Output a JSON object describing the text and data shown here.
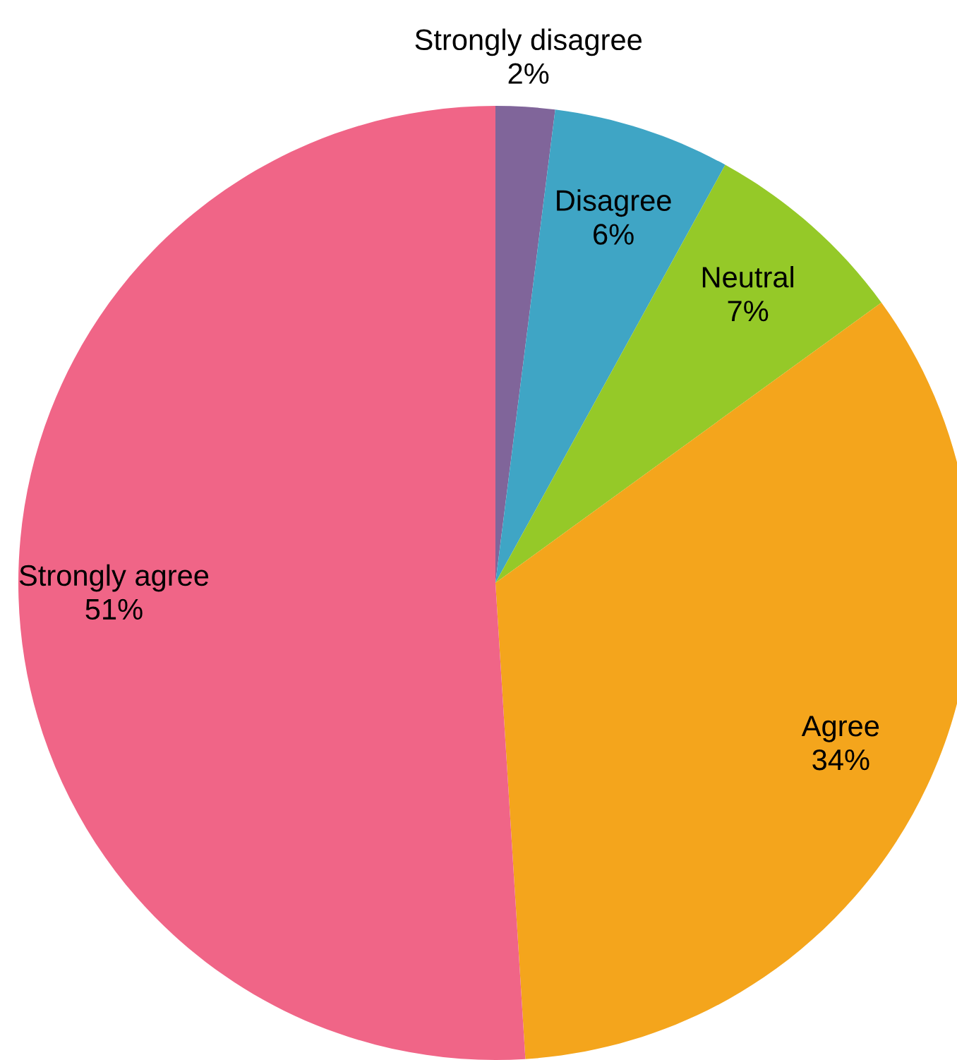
{
  "chart_data": {
    "type": "pie",
    "categories": [
      "Strongly disagree",
      "Disagree",
      "Neutral",
      "Agree",
      "Strongly agree"
    ],
    "values": [
      2,
      6,
      7,
      34,
      51
    ],
    "value_labels": [
      "2%",
      "6%",
      "7%",
      "34%",
      "51%"
    ],
    "colors": [
      "#80659a",
      "#3fa5c5",
      "#95c928",
      "#f4a51c",
      "#f06587"
    ]
  }
}
